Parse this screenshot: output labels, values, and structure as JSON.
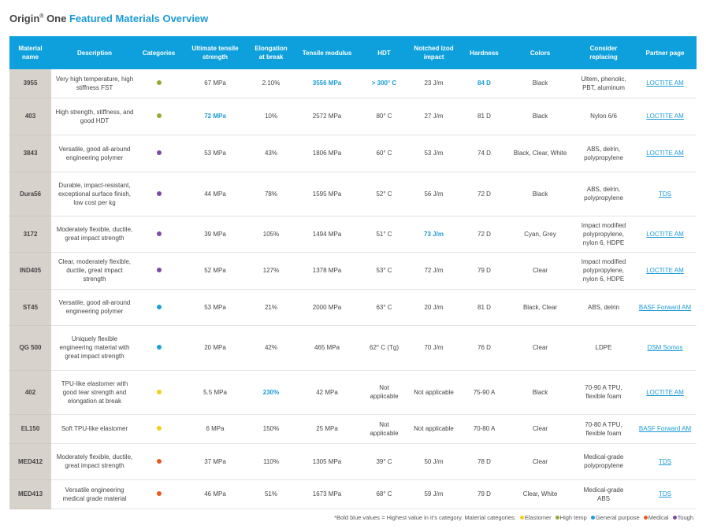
{
  "title": {
    "brand": "Origin",
    "reg": "®",
    "brand2": " One ",
    "rest": "Featured Materials Overview"
  },
  "colors": {
    "Elastomer": "#f2cf1d",
    "High temp": "#9aa833",
    "General purpose": "#1aa0dc",
    "Medical": "#e85a1e",
    "Tough": "#7d4aa8"
  },
  "headers": [
    "Material name",
    "Description",
    "Categories",
    "Ultimate tensile strength",
    "Elongation at break",
    "Tensile modulus",
    "HDT",
    "Notched Izod impact",
    "Hardness",
    "Colors",
    "Consider replacing",
    "Partner page"
  ],
  "rows": [
    {
      "name": "3955",
      "desc": "Very high temperature, high stiffness FST",
      "cat": "High temp",
      "uts": "67 MPa",
      "elong": "2.10%",
      "mod": "3556 MPa",
      "hdt": "> 300° C",
      "izod": "23 J/m",
      "hard": "84 D",
      "colors": "Black",
      "replace": "Ultem, phenolic, PBT, aluminum",
      "partner": "LOCTITE AM",
      "bold": [
        "mod",
        "hdt",
        "hard"
      ]
    },
    {
      "name": "403",
      "desc": "High strength, stiffness, and good HDT",
      "cat": "High temp",
      "uts": "72 MPa",
      "elong": "10%",
      "mod": "2572 MPa",
      "hdt": "80° C",
      "izod": "27 J/m",
      "hard": "81 D",
      "colors": "Black",
      "replace": "Nylon 6/6",
      "partner": "LOCTITE AM",
      "bold": [
        "uts"
      ]
    },
    {
      "name": "3843",
      "desc": "Versatile, good all-around engineering polymer",
      "cat": "Tough",
      "uts": "53 MPa",
      "elong": "43%",
      "mod": "1806 MPa",
      "hdt": "60° C",
      "izod": "53 J/m",
      "hard": "74 D",
      "colors": "Black, Clear, White",
      "replace": "ABS, delrin, polypropylene",
      "partner": "LOCTITE AM",
      "bold": []
    },
    {
      "name": "Dura56",
      "desc": "Durable, impact-resistant, exceptional surface finish, low cost per kg",
      "cat": "Tough",
      "uts": "44 MPa",
      "elong": "78%",
      "mod": "1595 MPa",
      "hdt": "52° C",
      "izod": "56 J/m",
      "hard": "72 D",
      "colors": "Black",
      "replace": "ABS, delrin, polypropylene",
      "partner": "TDS",
      "bold": []
    },
    {
      "name": "3172",
      "desc": "Moderately flexible, ductile, great impact strength",
      "cat": "Tough",
      "uts": "39 MPa",
      "elong": "105%",
      "mod": "1494 MPa",
      "hdt": "51° C",
      "izod": "73 J/m",
      "hard": "72 D",
      "colors": "Cyan, Grey",
      "replace": "Impact modified polypropylene, nylon 6, HDPE",
      "partner": "LOCTITE AM",
      "bold": [
        "izod"
      ]
    },
    {
      "name": "IND405",
      "desc": "Clear, moderately flexible, ductile, great impact strength",
      "cat": "Tough",
      "uts": "52 MPa",
      "elong": "127%",
      "mod": "1378 MPa",
      "hdt": "53° C",
      "izod": "72 J/m",
      "hard": "79 D",
      "colors": "Clear",
      "replace": "Impact modified polypropylene, nylon 6, HDPE",
      "partner": "LOCTITE AM",
      "bold": []
    },
    {
      "name": "ST45",
      "desc": "Versatile, good all-around engineering polymer",
      "cat": "General purpose",
      "uts": "53 MPa",
      "elong": "21%",
      "mod": "2000 MPa",
      "hdt": "63° C",
      "izod": "20 J/m",
      "hard": "81 D",
      "colors": "Black, Clear",
      "replace": "ABS, delrin",
      "partner": "BASF Forward AM",
      "bold": []
    },
    {
      "name": "QG 500",
      "desc": "Uniquely flexible engineering material with great impact strength",
      "cat": "General purpose",
      "uts": "20 MPa",
      "elong": "42%",
      "mod": "465 MPa",
      "hdt": "62° C (Tg)",
      "izod": "70 J/m",
      "hard": "76 D",
      "colors": "Clear",
      "replace": "LDPE",
      "partner": "DSM Somos",
      "bold": []
    },
    {
      "name": "402",
      "desc": "TPU-like elastomer with good tear strength and elongation at break",
      "cat": "Elastomer",
      "uts": "5.5 MPa",
      "elong": "230%",
      "mod": "42 MPa",
      "hdt": "Not applicable",
      "izod": "Not applicable",
      "hard": "75-90 A",
      "colors": "Black",
      "replace": "70-90 A TPU, flexible foam",
      "partner": "LOCTITE AM",
      "bold": [
        "elong"
      ]
    },
    {
      "name": "EL150",
      "desc": "Soft TPU-like elastomer",
      "cat": "Elastomer",
      "uts": "6 MPa",
      "elong": "150%",
      "mod": "25 MPa",
      "hdt": "Not applicable",
      "izod": "Not applicable",
      "hard": "70-80 A",
      "colors": "Clear",
      "replace": "70-80 A TPU, flexible foam",
      "partner": "BASF Forward AM",
      "bold": []
    },
    {
      "name": "MED412",
      "desc": "Moderately flexible, ductile, great impact strength",
      "cat": "Medical",
      "uts": "37 MPa",
      "elong": "110%",
      "mod": "1305 MPa",
      "hdt": "39° C",
      "izod": "50 J/m",
      "hard": "78 D",
      "colors": "Clear",
      "replace": "Medical-grade polypropylene",
      "partner": "TDS",
      "bold": []
    },
    {
      "name": "MED413",
      "desc": "Versatile engineering medical grade material",
      "cat": "Medical",
      "uts": "46 MPa",
      "elong": "51%",
      "mod": "1673 MPa",
      "hdt": "68° C",
      "izod": "59 J/m",
      "hard": "79 D",
      "colors": "Clear, White",
      "replace": "Medical-grade ABS",
      "partner": "TDS",
      "bold": []
    }
  ],
  "footnote": {
    "text": "*Bold blue values = Highest value in it's category.  Material categories:",
    "legend": [
      "Elastomer",
      "High temp",
      "General purpose",
      "Medical",
      "Tough"
    ]
  }
}
